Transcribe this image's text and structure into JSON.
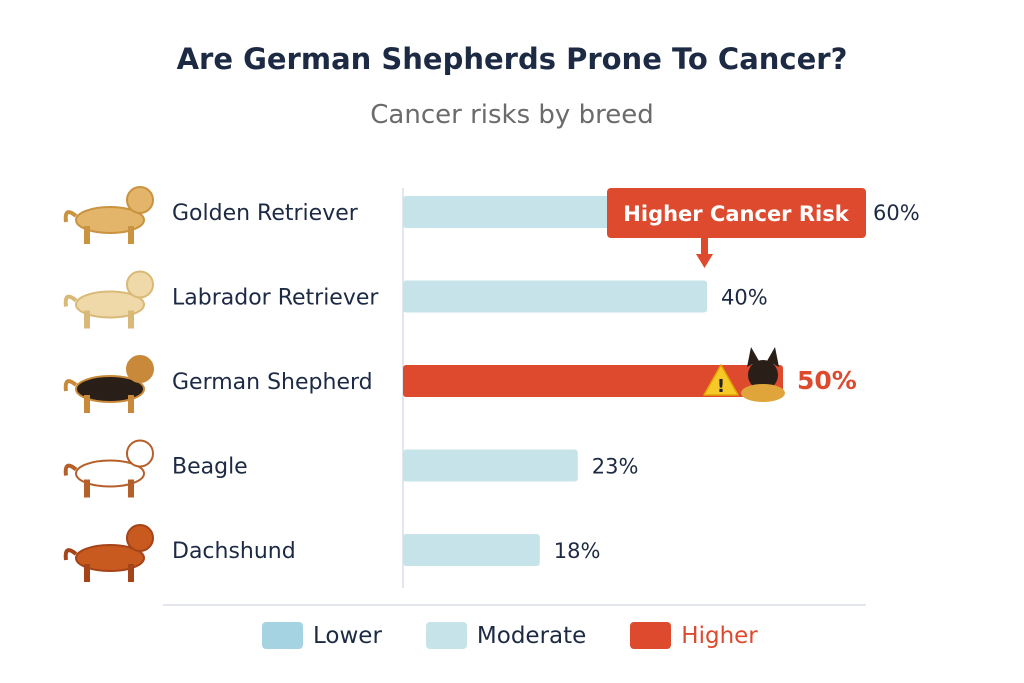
{
  "title": "Are German Shepherds Prone To Cancer?",
  "subtitle": "Cancer risks by breed",
  "colors": {
    "lower": "#a6d3e2",
    "moderate": "#c6e3e9",
    "higher": "#dd4a2e",
    "text": "#1d2a44",
    "axis": "#e4e6ee"
  },
  "chart_data": {
    "type": "bar",
    "orientation": "horizontal",
    "title": "Are German Shepherds Prone To Cancer?",
    "subtitle": "Cancer risks by breed",
    "categories": [
      "Golden Retriever",
      "Labrador Retriever",
      "German Shepherd",
      "Beagle",
      "Dachshund"
    ],
    "values": [
      60,
      40,
      50,
      23,
      18
    ],
    "value_labels": [
      "60%",
      "40%",
      "50%",
      "23%",
      "18%"
    ],
    "risk_level": [
      "moderate",
      "moderate",
      "higher",
      "moderate",
      "moderate"
    ],
    "unit": "%",
    "grid": false,
    "annotation": {
      "text": "Higher Cancer Risk",
      "target": "German Shepherd",
      "icon": "warning-icon"
    },
    "legend": {
      "placement": "bottom",
      "entries": [
        {
          "label": "Lower",
          "level": "lower"
        },
        {
          "label": "Moderate",
          "level": "moderate"
        },
        {
          "label": "Higher",
          "level": "higher"
        }
      ]
    }
  }
}
